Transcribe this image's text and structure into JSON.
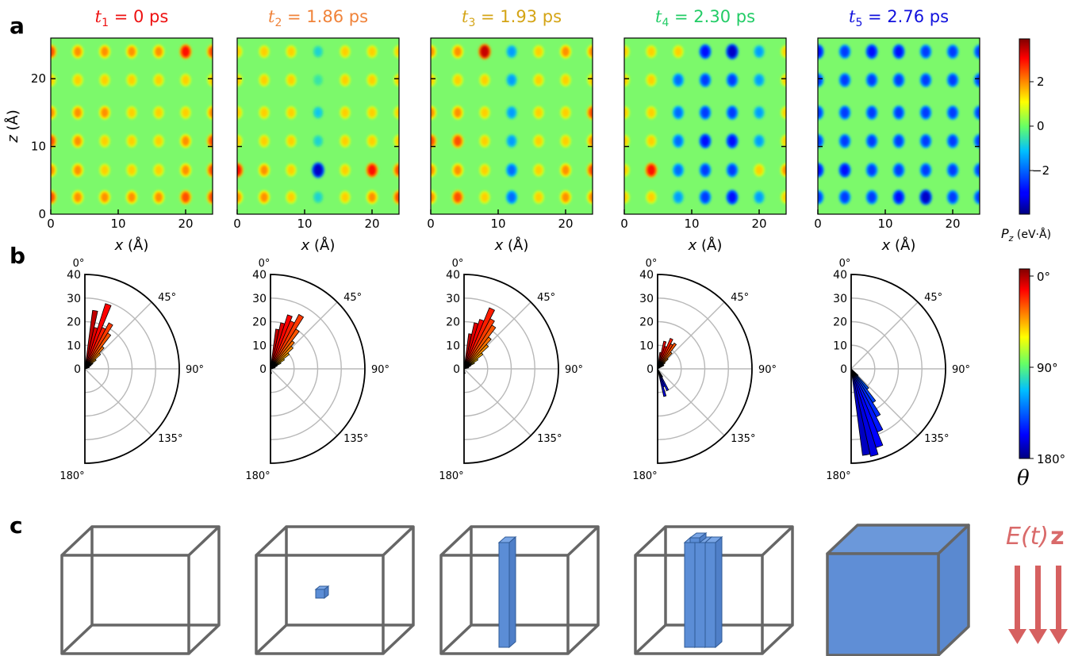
{
  "panel_labels": {
    "a": "a",
    "b": "b",
    "c": "c"
  },
  "titles": [
    {
      "sym": "t",
      "sub": "1",
      "val": " = 0 ps",
      "color": "#ee1111"
    },
    {
      "sym": "t",
      "sub": "2",
      "val": " = 1.86 ps",
      "color": "#f0833a"
    },
    {
      "sym": "t",
      "sub": "3",
      "val": " = 1.93 ps",
      "color": "#d4a415"
    },
    {
      "sym": "t",
      "sub": "4",
      "val": " = 2.30 ps",
      "color": "#22cc66"
    },
    {
      "sym": "t",
      "sub": "5",
      "val": " = 2.76 ps",
      "color": "#1111dd"
    }
  ],
  "axes": {
    "xlabel": "x (Å)",
    "ylabel": "z (Å)",
    "xticks": [
      "0",
      "10",
      "20"
    ],
    "yticks": [
      "0",
      "10",
      "20"
    ]
  },
  "colorbar_pz": {
    "ticks": [
      "2",
      "0",
      "−2"
    ],
    "label": "P",
    "label_sub": "z",
    "label_unit": " (eV·Å)"
  },
  "colorbar_theta": {
    "ticks": [
      "0°",
      "90°",
      "180°"
    ],
    "label": "θ"
  },
  "polar": {
    "angle_labels": [
      "0°",
      "45°",
      "90°",
      "135°",
      "180°"
    ],
    "r_ticks": [
      "0",
      "10",
      "20",
      "30",
      "40"
    ]
  },
  "field_label": {
    "E": "E",
    "t": "(t)",
    "z": "z"
  },
  "chart_data": [
    {
      "type": "heatmap",
      "title": "t1 = 0 ps",
      "xlabel": "x (Å)",
      "ylabel": "z (Å)",
      "xlim": [
        0,
        24
      ],
      "ylim": [
        0,
        26
      ],
      "clim": [
        -4,
        4
      ],
      "cols_x": [
        0,
        4,
        8,
        12,
        16,
        20,
        24
      ],
      "rows_z": [
        24,
        19.8,
        15,
        10.8,
        6.5,
        2.5
      ],
      "pz": [
        [
          2.5,
          2,
          2,
          2,
          2,
          3,
          2.5
        ],
        [
          1.5,
          1.5,
          1.5,
          1.5,
          1.5,
          1.5,
          1.5
        ],
        [
          2,
          2,
          2,
          1.5,
          1.5,
          1.5,
          2
        ],
        [
          2.5,
          2,
          1.5,
          1.5,
          1.5,
          2,
          2.5
        ],
        [
          2,
          2,
          1.5,
          1.5,
          1.5,
          2,
          2.5
        ],
        [
          2.5,
          2,
          2,
          2,
          2,
          2.5,
          2.5
        ]
      ]
    },
    {
      "type": "heatmap",
      "title": "t2 = 1.86 ps",
      "xlabel": "x (Å)",
      "xlim": [
        0,
        24
      ],
      "ylim": [
        0,
        26
      ],
      "clim": [
        -4,
        4
      ],
      "cols_x": [
        0,
        4,
        8,
        12,
        16,
        20,
        24
      ],
      "rows_z": [
        24,
        19.8,
        15,
        10.8,
        6.5,
        2.5
      ],
      "pz": [
        [
          1.5,
          1.5,
          1.5,
          -0.8,
          1.5,
          1.5,
          1.5
        ],
        [
          1.5,
          1.5,
          1.5,
          -0.5,
          1.5,
          1.5,
          1.5
        ],
        [
          1.5,
          1.5,
          1.5,
          -1,
          1.5,
          1.5,
          1.5
        ],
        [
          1.5,
          1.5,
          1.5,
          -0.8,
          1.5,
          1.5,
          1.5
        ],
        [
          3,
          2,
          1.5,
          -3.5,
          1.5,
          3,
          2.5
        ],
        [
          2,
          2,
          1.5,
          -0.8,
          1.5,
          2,
          2.5
        ]
      ]
    },
    {
      "type": "heatmap",
      "title": "t3 = 1.93 ps",
      "xlabel": "x (Å)",
      "xlim": [
        0,
        24
      ],
      "ylim": [
        0,
        26
      ],
      "clim": [
        -4,
        4
      ],
      "cols_x": [
        0,
        4,
        8,
        12,
        16,
        20,
        24
      ],
      "rows_z": [
        24,
        19.8,
        15,
        10.8,
        6.5,
        2.5
      ],
      "pz": [
        [
          2,
          2,
          3.5,
          -1.5,
          1.5,
          2,
          2
        ],
        [
          1.5,
          1.5,
          1.5,
          -1.5,
          1.5,
          1.5,
          1.5
        ],
        [
          2,
          2,
          1.5,
          -1.5,
          1.5,
          1.5,
          2.5
        ],
        [
          2.5,
          2.5,
          1.5,
          -1.5,
          1.5,
          1.5,
          2
        ],
        [
          2,
          2,
          1.5,
          -2,
          1.5,
          2,
          2.5
        ],
        [
          2,
          2.5,
          1.5,
          -2,
          1.5,
          2,
          2
        ]
      ]
    },
    {
      "type": "heatmap",
      "title": "t4 = 2.30 ps",
      "xlabel": "x (Å)",
      "xlim": [
        0,
        24
      ],
      "ylim": [
        0,
        26
      ],
      "clim": [
        -4,
        4
      ],
      "cols_x": [
        0,
        4,
        8,
        12,
        16,
        20,
        24
      ],
      "rows_z": [
        24,
        19.8,
        15,
        10.8,
        6.5,
        2.5
      ],
      "pz": [
        [
          1.5,
          1.5,
          1.5,
          -3,
          -3.5,
          -1.5,
          1.5
        ],
        [
          1.5,
          1.5,
          -2,
          -2.5,
          -2.5,
          -1.5,
          1.5
        ],
        [
          1.5,
          1.5,
          -2,
          -2.5,
          -2.5,
          -1.5,
          1.5
        ],
        [
          1.5,
          1.5,
          -2,
          -3,
          -3,
          -1.5,
          1.5
        ],
        [
          1.5,
          3,
          -2,
          -2.5,
          -2.5,
          1.5,
          2
        ],
        [
          1.5,
          1.5,
          -1.5,
          -2.5,
          -3,
          -1.5,
          1.5
        ]
      ]
    },
    {
      "type": "heatmap",
      "title": "t5 = 2.76 ps",
      "xlabel": "x (Å)",
      "xlim": [
        0,
        24
      ],
      "ylim": [
        0,
        26
      ],
      "clim": [
        -4,
        4
      ],
      "cols_x": [
        0,
        4,
        8,
        12,
        16,
        20,
        24
      ],
      "rows_z": [
        24,
        19.8,
        15,
        10.8,
        6.5,
        2.5
      ],
      "pz": [
        [
          -3,
          -2.5,
          -3,
          -3,
          -2.5,
          -2.5,
          -2.5
        ],
        [
          -2.5,
          -2.5,
          -2.5,
          -2.5,
          -2.5,
          -2.5,
          -2.5
        ],
        [
          -2.5,
          -2.5,
          -2.5,
          -2.5,
          -2.5,
          -2.5,
          -2.5
        ],
        [
          -2.5,
          -2.5,
          -2.5,
          -2.5,
          -2.5,
          -2.5,
          -2.5
        ],
        [
          -3,
          -3,
          -2.5,
          -2.5,
          -2.5,
          -2.5,
          -2.5
        ],
        [
          -2.5,
          -2.5,
          -2.5,
          -3,
          -3.5,
          -2.5,
          -2.5
        ]
      ]
    },
    {
      "type": "bar",
      "polar": true,
      "thetalim": [
        0,
        180
      ],
      "rlim": [
        0,
        40
      ],
      "bins": [
        {
          "theta": 10,
          "r": 25
        },
        {
          "theta": 15,
          "r": 18
        },
        {
          "theta": 20,
          "r": 29
        },
        {
          "theta": 25,
          "r": 19
        },
        {
          "theta": 30,
          "r": 22
        },
        {
          "theta": 35,
          "r": 18
        },
        {
          "theta": 40,
          "r": 12
        },
        {
          "theta": 45,
          "r": 9
        },
        {
          "theta": 50,
          "r": 6
        },
        {
          "theta": 55,
          "r": 4
        },
        {
          "theta": 60,
          "r": 3
        },
        {
          "theta": 65,
          "r": 2
        },
        {
          "theta": 70,
          "r": 2
        },
        {
          "theta": 75,
          "r": 1
        }
      ]
    },
    {
      "type": "bar",
      "polar": true,
      "thetalim": [
        0,
        180
      ],
      "rlim": [
        0,
        40
      ],
      "bins": [
        {
          "theta": 10,
          "r": 17
        },
        {
          "theta": 15,
          "r": 20
        },
        {
          "theta": 20,
          "r": 24
        },
        {
          "theta": 25,
          "r": 22
        },
        {
          "theta": 30,
          "r": 26
        },
        {
          "theta": 35,
          "r": 20
        },
        {
          "theta": 40,
          "r": 15
        },
        {
          "theta": 45,
          "r": 13
        },
        {
          "theta": 50,
          "r": 10
        },
        {
          "theta": 55,
          "r": 7
        },
        {
          "theta": 60,
          "r": 5
        },
        {
          "theta": 65,
          "r": 3
        },
        {
          "theta": 70,
          "r": 2
        },
        {
          "theta": 75,
          "r": 2
        },
        {
          "theta": 80,
          "r": 1
        },
        {
          "theta": 170,
          "r": 2
        }
      ]
    },
    {
      "type": "bar",
      "polar": true,
      "thetalim": [
        0,
        180
      ],
      "rlim": [
        0,
        40
      ],
      "bins": [
        {
          "theta": 10,
          "r": 15
        },
        {
          "theta": 15,
          "r": 20
        },
        {
          "theta": 20,
          "r": 22
        },
        {
          "theta": 25,
          "r": 28
        },
        {
          "theta": 30,
          "r": 24
        },
        {
          "theta": 35,
          "r": 22
        },
        {
          "theta": 40,
          "r": 17
        },
        {
          "theta": 45,
          "r": 14
        },
        {
          "theta": 50,
          "r": 10
        },
        {
          "theta": 55,
          "r": 7
        },
        {
          "theta": 60,
          "r": 5
        },
        {
          "theta": 65,
          "r": 3
        },
        {
          "theta": 70,
          "r": 2
        },
        {
          "theta": 75,
          "r": 2
        },
        {
          "theta": 170,
          "r": 2
        }
      ]
    },
    {
      "type": "bar",
      "polar": true,
      "thetalim": [
        0,
        180
      ],
      "rlim": [
        0,
        40
      ],
      "bins": [
        {
          "theta": 10,
          "r": 7
        },
        {
          "theta": 15,
          "r": 12
        },
        {
          "theta": 20,
          "r": 10
        },
        {
          "theta": 25,
          "r": 14
        },
        {
          "theta": 30,
          "r": 12
        },
        {
          "theta": 35,
          "r": 13
        },
        {
          "theta": 40,
          "r": 9
        },
        {
          "theta": 45,
          "r": 6
        },
        {
          "theta": 50,
          "r": 4
        },
        {
          "theta": 60,
          "r": 3
        },
        {
          "theta": 150,
          "r": 4
        },
        {
          "theta": 155,
          "r": 10
        },
        {
          "theta": 160,
          "r": 8
        },
        {
          "theta": 165,
          "r": 12
        }
      ]
    },
    {
      "type": "bar",
      "polar": true,
      "thetalim": [
        0,
        180
      ],
      "rlim": [
        0,
        40
      ],
      "bins": [
        {
          "theta": 135,
          "r": 4
        },
        {
          "theta": 140,
          "r": 11
        },
        {
          "theta": 145,
          "r": 17
        },
        {
          "theta": 150,
          "r": 23
        },
        {
          "theta": 155,
          "r": 29
        },
        {
          "theta": 160,
          "r": 35
        },
        {
          "theta": 165,
          "r": 38
        },
        {
          "theta": 170,
          "r": 37
        }
      ]
    }
  ]
}
